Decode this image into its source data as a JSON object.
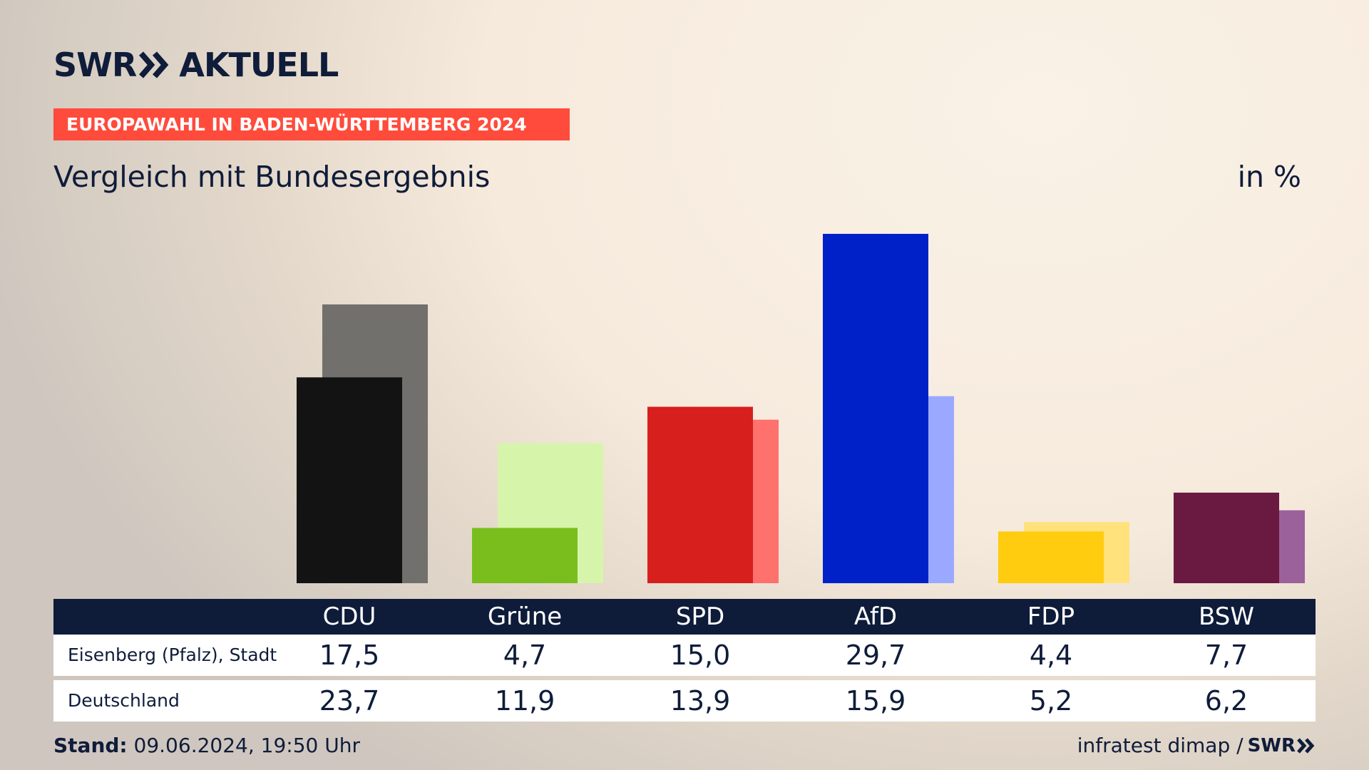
{
  "brand": {
    "logo_left": "SWR",
    "logo_right": "AKTUELL",
    "icon": "double-chevron-icon"
  },
  "banner": "EUROPAWAHL IN BADEN-WÜRTTEMBERG 2024",
  "subtitle": "Vergleich mit Bundesergebnis",
  "unit": "in %",
  "footer": {
    "stand_label": "Stand:",
    "stand_value": "09.06.2024, 19:50 Uhr",
    "source": "infratest dimap /",
    "source_brand": "SWR"
  },
  "table": {
    "rows": [
      {
        "label": "Eisenberg (Pfalz), Stadt",
        "values": [
          "17,5",
          "4,7",
          "15,0",
          "29,7",
          "4,4",
          "7,7"
        ]
      },
      {
        "label": "Deutschland",
        "values": [
          "23,7",
          "11,9",
          "13,9",
          "15,9",
          "5,2",
          "6,2"
        ]
      }
    ]
  },
  "chart_data": {
    "type": "bar",
    "categories": [
      "CDU",
      "Grüne",
      "SPD",
      "AfD",
      "FDP",
      "BSW"
    ],
    "series": [
      {
        "name": "Eisenberg (Pfalz), Stadt",
        "values": [
          17.5,
          4.7,
          15.0,
          29.7,
          4.4,
          7.7
        ],
        "colors": [
          "#131313",
          "#7abe1e",
          "#d71f1d",
          "#0021c8",
          "#ffcc0f",
          "#6a1a41"
        ]
      },
      {
        "name": "Deutschland",
        "values": [
          23.7,
          11.9,
          13.9,
          15.9,
          5.2,
          6.2
        ],
        "colors": [
          "#72706c",
          "#d6f5aa",
          "#ff716d",
          "#9aa9ff",
          "#ffe27c",
          "#9b619a"
        ]
      }
    ],
    "ylim": [
      0,
      29.7
    ],
    "grid": false,
    "legend": "none"
  }
}
